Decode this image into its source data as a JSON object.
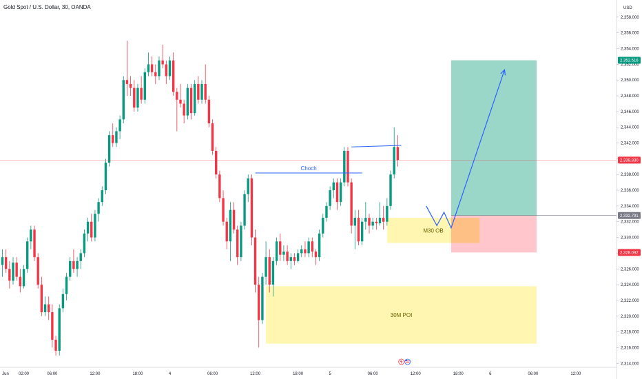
{
  "chart_data": {
    "type": "candlestick",
    "title": "Gold Spot / U.S. Dollar, 30, OANDA",
    "currency_label": "USD",
    "ylim": [
      2313.5,
      2360.0
    ],
    "x_ticks": [
      {
        "label": "Jun",
        "bar": -1
      },
      {
        "label": "02:00",
        "bar": 6
      },
      {
        "label": "06:00",
        "bar": 14
      },
      {
        "label": "12:00",
        "bar": 26
      },
      {
        "label": "18:00",
        "bar": 38
      },
      {
        "label": "4",
        "bar": 47
      },
      {
        "label": "06:00",
        "bar": 59
      },
      {
        "label": "12:00",
        "bar": 71
      },
      {
        "label": "18:00",
        "bar": 83
      },
      {
        "label": "5",
        "bar": 92
      },
      {
        "label": "06:00",
        "bar": 104
      },
      {
        "label": "12:00",
        "bar": 116
      },
      {
        "label": "18:00",
        "bar": 128
      },
      {
        "label": "6",
        "bar": 137
      },
      {
        "label": "06:00",
        "bar": 149
      },
      {
        "label": "12:00",
        "bar": 161
      }
    ],
    "y_ticks": [
      2314,
      2316,
      2318,
      2320,
      2322,
      2324,
      2326,
      2328,
      2330,
      2332,
      2334,
      2336,
      2338,
      2340,
      2342,
      2344,
      2346,
      2348,
      2350,
      2352,
      2354,
      2356,
      2358
    ],
    "y_tick_labels": [
      "2,314.000",
      "2,316.000",
      "2,318.000",
      "2,320.000",
      "2,322.000",
      "2,324.000",
      "2,326.000",
      "2,328.000",
      "2,330.000",
      "2,332.000",
      "2,334.000",
      "2,336.000",
      "2,338.000",
      "2,340.000",
      "2,342.000",
      "2,344.000",
      "2,346.000",
      "2,348.000",
      "2,350.000",
      "2,352.000",
      "2,354.000",
      "2,356.000",
      "2,358.000"
    ],
    "price_badges": [
      {
        "label": "2,352.516",
        "value": 2352.516,
        "color": "#089981"
      },
      {
        "label": "2,339.830",
        "value": 2339.83,
        "color": "#f23645"
      },
      {
        "label": "2,332.791",
        "value": 2332.791,
        "color": "#787b86"
      },
      {
        "label": "2,328.092",
        "value": 2328.092,
        "color": "#f23645"
      }
    ],
    "current_price": 2339.83,
    "candles": [
      {
        "o": 2326.5,
        "h": 2328.5,
        "l": 2325.0,
        "c": 2327.5
      },
      {
        "o": 2327.5,
        "h": 2328.5,
        "l": 2325.5,
        "c": 2326.0
      },
      {
        "o": 2326.0,
        "h": 2327.0,
        "l": 2323.5,
        "c": 2324.5
      },
      {
        "o": 2324.5,
        "h": 2327.5,
        "l": 2324.0,
        "c": 2326.8
      },
      {
        "o": 2326.8,
        "h": 2327.5,
        "l": 2324.5,
        "c": 2325.0
      },
      {
        "o": 2325.0,
        "h": 2326.0,
        "l": 2323.0,
        "c": 2323.8
      },
      {
        "o": 2323.8,
        "h": 2326.5,
        "l": 2323.5,
        "c": 2326.0
      },
      {
        "o": 2326.0,
        "h": 2330.0,
        "l": 2325.5,
        "c": 2329.5
      },
      {
        "o": 2329.5,
        "h": 2331.5,
        "l": 2328.5,
        "c": 2331.0
      },
      {
        "o": 2331.0,
        "h": 2331.5,
        "l": 2327.0,
        "c": 2327.5
      },
      {
        "o": 2327.5,
        "h": 2328.0,
        "l": 2323.5,
        "c": 2324.0
      },
      {
        "o": 2324.0,
        "h": 2325.0,
        "l": 2320.0,
        "c": 2320.5
      },
      {
        "o": 2320.5,
        "h": 2322.5,
        "l": 2320.0,
        "c": 2321.5
      },
      {
        "o": 2321.5,
        "h": 2322.5,
        "l": 2319.5,
        "c": 2320.5
      },
      {
        "o": 2320.5,
        "h": 2321.5,
        "l": 2316.0,
        "c": 2317.0
      },
      {
        "o": 2317.0,
        "h": 2317.5,
        "l": 2315.0,
        "c": 2315.6
      },
      {
        "o": 2315.6,
        "h": 2321.5,
        "l": 2315.0,
        "c": 2321.0
      },
      {
        "o": 2321.0,
        "h": 2323.5,
        "l": 2320.5,
        "c": 2322.8
      },
      {
        "o": 2322.8,
        "h": 2325.5,
        "l": 2322.0,
        "c": 2325.0
      },
      {
        "o": 2325.0,
        "h": 2327.5,
        "l": 2324.5,
        "c": 2327.0
      },
      {
        "o": 2327.0,
        "h": 2328.5,
        "l": 2325.5,
        "c": 2326.0
      },
      {
        "o": 2326.0,
        "h": 2327.5,
        "l": 2325.0,
        "c": 2327.0
      },
      {
        "o": 2327.0,
        "h": 2328.5,
        "l": 2326.0,
        "c": 2328.0
      },
      {
        "o": 2328.0,
        "h": 2331.0,
        "l": 2327.5,
        "c": 2330.5
      },
      {
        "o": 2330.5,
        "h": 2332.5,
        "l": 2329.5,
        "c": 2332.0
      },
      {
        "o": 2332.0,
        "h": 2333.0,
        "l": 2329.5,
        "c": 2330.0
      },
      {
        "o": 2330.0,
        "h": 2333.5,
        "l": 2329.5,
        "c": 2333.0
      },
      {
        "o": 2333.0,
        "h": 2335.0,
        "l": 2332.0,
        "c": 2334.5
      },
      {
        "o": 2334.5,
        "h": 2336.5,
        "l": 2334.0,
        "c": 2336.0
      },
      {
        "o": 2336.0,
        "h": 2340.0,
        "l": 2335.5,
        "c": 2339.5
      },
      {
        "o": 2339.5,
        "h": 2343.5,
        "l": 2339.0,
        "c": 2343.0
      },
      {
        "o": 2343.0,
        "h": 2344.5,
        "l": 2341.5,
        "c": 2342.0
      },
      {
        "o": 2342.0,
        "h": 2344.0,
        "l": 2341.5,
        "c": 2343.5
      },
      {
        "o": 2343.5,
        "h": 2345.5,
        "l": 2342.5,
        "c": 2345.0
      },
      {
        "o": 2345.0,
        "h": 2350.5,
        "l": 2344.5,
        "c": 2350.0
      },
      {
        "o": 2350.0,
        "h": 2355.0,
        "l": 2348.0,
        "c": 2349.5
      },
      {
        "o": 2349.5,
        "h": 2350.5,
        "l": 2348.0,
        "c": 2349.0
      },
      {
        "o": 2349.0,
        "h": 2350.0,
        "l": 2346.0,
        "c": 2346.5
      },
      {
        "o": 2346.5,
        "h": 2349.5,
        "l": 2346.0,
        "c": 2349.0
      },
      {
        "o": 2349.0,
        "h": 2350.5,
        "l": 2347.0,
        "c": 2347.5
      },
      {
        "o": 2347.5,
        "h": 2351.5,
        "l": 2347.0,
        "c": 2351.0
      },
      {
        "o": 2351.0,
        "h": 2353.5,
        "l": 2350.5,
        "c": 2352.0
      },
      {
        "o": 2352.0,
        "h": 2353.0,
        "l": 2350.5,
        "c": 2351.0
      },
      {
        "o": 2351.0,
        "h": 2352.0,
        "l": 2349.5,
        "c": 2350.5
      },
      {
        "o": 2350.5,
        "h": 2353.0,
        "l": 2350.0,
        "c": 2352.5
      },
      {
        "o": 2352.5,
        "h": 2354.5,
        "l": 2351.5,
        "c": 2352.0
      },
      {
        "o": 2352.0,
        "h": 2352.5,
        "l": 2349.5,
        "c": 2350.5
      },
      {
        "o": 2350.5,
        "h": 2353.0,
        "l": 2350.0,
        "c": 2352.5
      },
      {
        "o": 2352.5,
        "h": 2353.5,
        "l": 2348.0,
        "c": 2348.5
      },
      {
        "o": 2348.5,
        "h": 2349.0,
        "l": 2343.5,
        "c": 2347.5
      },
      {
        "o": 2347.5,
        "h": 2349.5,
        "l": 2346.5,
        "c": 2347.0
      },
      {
        "o": 2347.0,
        "h": 2347.5,
        "l": 2344.5,
        "c": 2345.5
      },
      {
        "o": 2345.5,
        "h": 2349.5,
        "l": 2345.0,
        "c": 2349.0
      },
      {
        "o": 2349.0,
        "h": 2349.5,
        "l": 2345.0,
        "c": 2345.8
      },
      {
        "o": 2345.8,
        "h": 2350.0,
        "l": 2345.5,
        "c": 2349.5
      },
      {
        "o": 2349.5,
        "h": 2350.5,
        "l": 2347.0,
        "c": 2347.5
      },
      {
        "o": 2347.5,
        "h": 2350.0,
        "l": 2347.0,
        "c": 2349.5
      },
      {
        "o": 2349.5,
        "h": 2352.0,
        "l": 2347.0,
        "c": 2347.5
      },
      {
        "o": 2347.5,
        "h": 2348.0,
        "l": 2344.0,
        "c": 2344.5
      },
      {
        "o": 2344.5,
        "h": 2345.0,
        "l": 2340.5,
        "c": 2341.0
      },
      {
        "o": 2341.0,
        "h": 2341.5,
        "l": 2337.5,
        "c": 2338.0
      },
      {
        "o": 2338.0,
        "h": 2338.5,
        "l": 2334.5,
        "c": 2335.0
      },
      {
        "o": 2335.0,
        "h": 2336.0,
        "l": 2331.5,
        "c": 2332.0
      },
      {
        "o": 2332.0,
        "h": 2332.5,
        "l": 2328.5,
        "c": 2329.5
      },
      {
        "o": 2329.5,
        "h": 2334.5,
        "l": 2327.0,
        "c": 2333.5
      },
      {
        "o": 2333.5,
        "h": 2334.5,
        "l": 2330.5,
        "c": 2331.0
      },
      {
        "o": 2331.0,
        "h": 2331.5,
        "l": 2326.5,
        "c": 2327.5
      },
      {
        "o": 2327.5,
        "h": 2332.0,
        "l": 2327.0,
        "c": 2331.5
      },
      {
        "o": 2331.5,
        "h": 2336.0,
        "l": 2331.0,
        "c": 2335.5
      },
      {
        "o": 2335.5,
        "h": 2338.0,
        "l": 2334.5,
        "c": 2337.5
      },
      {
        "o": 2337.5,
        "h": 2338.0,
        "l": 2329.0,
        "c": 2330.0
      },
      {
        "o": 2330.0,
        "h": 2331.0,
        "l": 2323.0,
        "c": 2324.0
      },
      {
        "o": 2324.0,
        "h": 2325.0,
        "l": 2316.0,
        "c": 2319.5
      },
      {
        "o": 2319.5,
        "h": 2325.5,
        "l": 2319.0,
        "c": 2325.0
      },
      {
        "o": 2325.0,
        "h": 2329.5,
        "l": 2324.0,
        "c": 2327.5
      },
      {
        "o": 2327.5,
        "h": 2328.5,
        "l": 2323.0,
        "c": 2324.0
      },
      {
        "o": 2324.0,
        "h": 2327.5,
        "l": 2322.5,
        "c": 2327.0
      },
      {
        "o": 2327.0,
        "h": 2330.0,
        "l": 2326.5,
        "c": 2329.5
      },
      {
        "o": 2329.5,
        "h": 2330.5,
        "l": 2327.0,
        "c": 2327.8
      },
      {
        "o": 2327.8,
        "h": 2329.0,
        "l": 2327.0,
        "c": 2328.2
      },
      {
        "o": 2328.2,
        "h": 2329.0,
        "l": 2326.5,
        "c": 2327.0
      },
      {
        "o": 2327.0,
        "h": 2328.0,
        "l": 2326.0,
        "c": 2327.5
      },
      {
        "o": 2327.5,
        "h": 2328.0,
        "l": 2326.5,
        "c": 2327.0
      },
      {
        "o": 2327.0,
        "h": 2328.5,
        "l": 2326.8,
        "c": 2328.0
      },
      {
        "o": 2328.0,
        "h": 2329.0,
        "l": 2327.5,
        "c": 2328.5
      },
      {
        "o": 2328.5,
        "h": 2329.5,
        "l": 2327.5,
        "c": 2328.0
      },
      {
        "o": 2328.0,
        "h": 2330.0,
        "l": 2327.5,
        "c": 2329.5
      },
      {
        "o": 2329.5,
        "h": 2330.0,
        "l": 2327.5,
        "c": 2328.2
      },
      {
        "o": 2328.2,
        "h": 2328.5,
        "l": 2326.5,
        "c": 2327.5
      },
      {
        "o": 2327.5,
        "h": 2331.0,
        "l": 2327.0,
        "c": 2330.5
      },
      {
        "o": 2330.5,
        "h": 2333.0,
        "l": 2330.0,
        "c": 2332.5
      },
      {
        "o": 2332.5,
        "h": 2334.5,
        "l": 2332.0,
        "c": 2334.0
      },
      {
        "o": 2334.0,
        "h": 2336.5,
        "l": 2333.5,
        "c": 2336.0
      },
      {
        "o": 2336.0,
        "h": 2337.5,
        "l": 2335.0,
        "c": 2337.0
      },
      {
        "o": 2337.0,
        "h": 2337.5,
        "l": 2333.5,
        "c": 2334.5
      },
      {
        "o": 2334.5,
        "h": 2337.5,
        "l": 2334.0,
        "c": 2337.0
      },
      {
        "o": 2337.0,
        "h": 2341.5,
        "l": 2336.5,
        "c": 2341.0
      },
      {
        "o": 2341.0,
        "h": 2341.5,
        "l": 2336.5,
        "c": 2337.0
      },
      {
        "o": 2337.0,
        "h": 2337.5,
        "l": 2330.5,
        "c": 2331.5
      },
      {
        "o": 2331.5,
        "h": 2333.5,
        "l": 2328.5,
        "c": 2332.5
      },
      {
        "o": 2332.5,
        "h": 2333.5,
        "l": 2329.0,
        "c": 2329.5
      },
      {
        "o": 2329.5,
        "h": 2332.5,
        "l": 2329.0,
        "c": 2332.0
      },
      {
        "o": 2332.0,
        "h": 2334.5,
        "l": 2331.0,
        "c": 2332.5
      },
      {
        "o": 2332.5,
        "h": 2333.0,
        "l": 2330.5,
        "c": 2331.5
      },
      {
        "o": 2331.5,
        "h": 2332.5,
        "l": 2331.0,
        "c": 2332.0
      },
      {
        "o": 2332.0,
        "h": 2332.5,
        "l": 2331.0,
        "c": 2331.8
      },
      {
        "o": 2331.8,
        "h": 2334.5,
        "l": 2331.5,
        "c": 2332.5
      },
      {
        "o": 2332.5,
        "h": 2334.0,
        "l": 2331.0,
        "c": 2332.0
      },
      {
        "o": 2332.0,
        "h": 2335.0,
        "l": 2331.5,
        "c": 2334.0
      },
      {
        "o": 2334.0,
        "h": 2338.5,
        "l": 2333.5,
        "c": 2338.0
      },
      {
        "o": 2338.0,
        "h": 2344.0,
        "l": 2337.5,
        "c": 2341.5
      },
      {
        "o": 2341.5,
        "h": 2343.0,
        "l": 2339.0,
        "c": 2339.83
      }
    ],
    "annotations": {
      "choch": {
        "label": "Choch",
        "bar_start": 71,
        "bar_end": 101,
        "price": 2338.2,
        "color": "#2962ff"
      },
      "high_line": {
        "bar_start": 98,
        "bar_end": 112,
        "price_start": 2341.5,
        "price_end": 2341.7,
        "color": "#2962ff"
      },
      "m30_ob": {
        "label": "M30 OB",
        "bar_start": 108,
        "bar_end": 134,
        "top": 2332.5,
        "bottom": 2329.3,
        "color": "#fff59d"
      },
      "poi_30m": {
        "label": "30M POI",
        "bar_start": 74,
        "bar_end": 150,
        "top": 2323.8,
        "bottom": 2316.5,
        "color": "#fff59d"
      },
      "target_zone": {
        "bar_start": 126,
        "bar_end": 150,
        "top": 2352.516,
        "bottom": 2332.791,
        "color": "#8fd3c3"
      },
      "stop_zone": {
        "bar_start": 126,
        "bar_end": 150,
        "top": 2332.791,
        "bottom": 2328.092,
        "color": "#ffc1c6"
      },
      "projection": {
        "color": "#2962ff",
        "points": [
          [
            119,
            2334.0
          ],
          [
            122,
            2331.5
          ],
          [
            124,
            2333.2
          ],
          [
            126,
            2331.2
          ],
          [
            141,
            2351.3
          ]
        ]
      }
    }
  }
}
